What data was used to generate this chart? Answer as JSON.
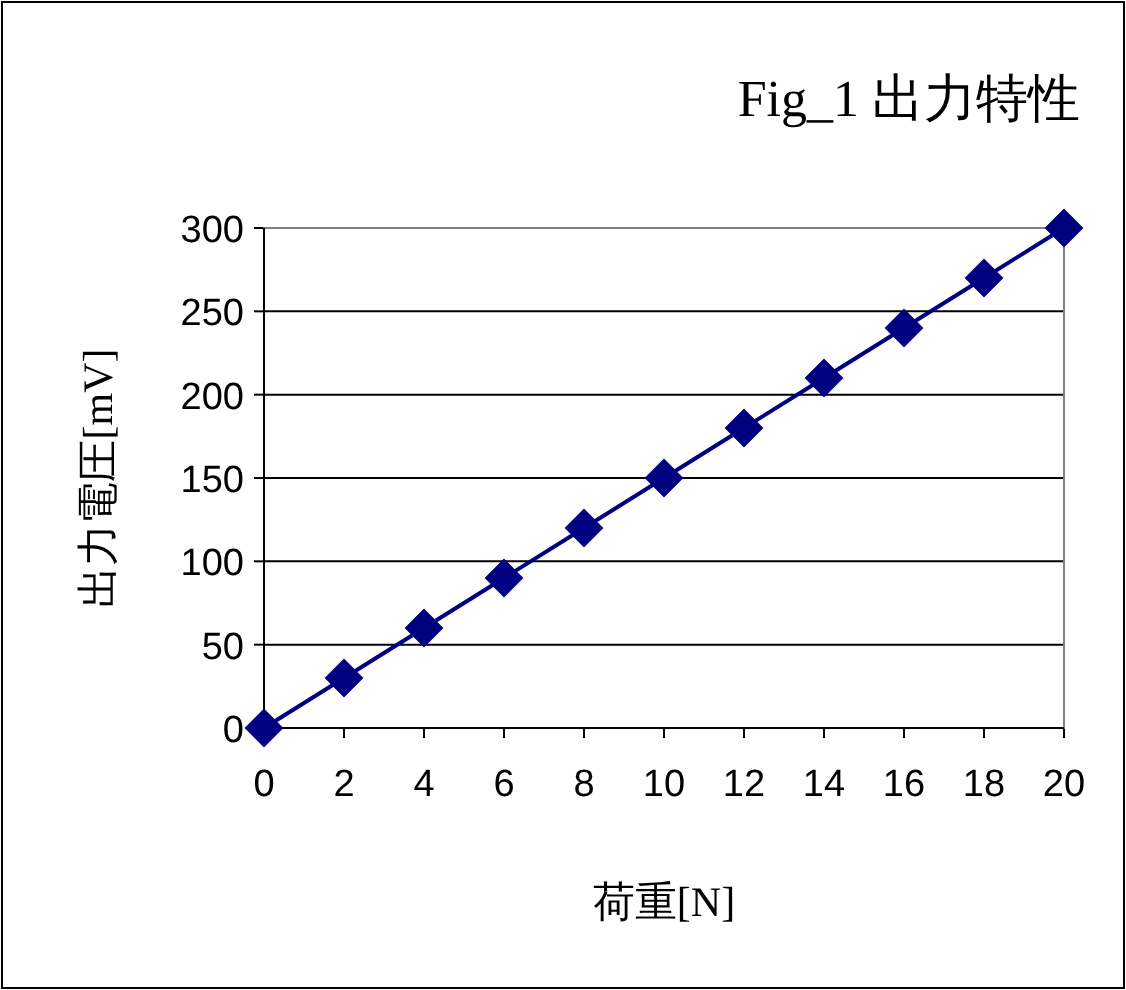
{
  "chart_data": {
    "type": "line",
    "title": "Fig_1 出力特性",
    "xlabel": "荷重[N]",
    "ylabel": "出力電圧[mV]",
    "x": [
      0,
      2,
      4,
      6,
      8,
      10,
      12,
      14,
      16,
      18,
      20
    ],
    "series": [
      {
        "color": "#000080",
        "values": [
          0,
          30,
          60,
          90,
          120,
          150,
          180,
          210,
          240,
          270,
          300
        ]
      }
    ],
    "xlim": [
      0,
      20
    ],
    "xticks": [
      0,
      2,
      4,
      6,
      8,
      10,
      12,
      14,
      16,
      18,
      20
    ],
    "ylim": [
      0,
      300
    ],
    "yticks": [
      0,
      50,
      100,
      150,
      200,
      250,
      300
    ],
    "grid": "y",
    "marker": "diamond",
    "line_style": "solid"
  }
}
